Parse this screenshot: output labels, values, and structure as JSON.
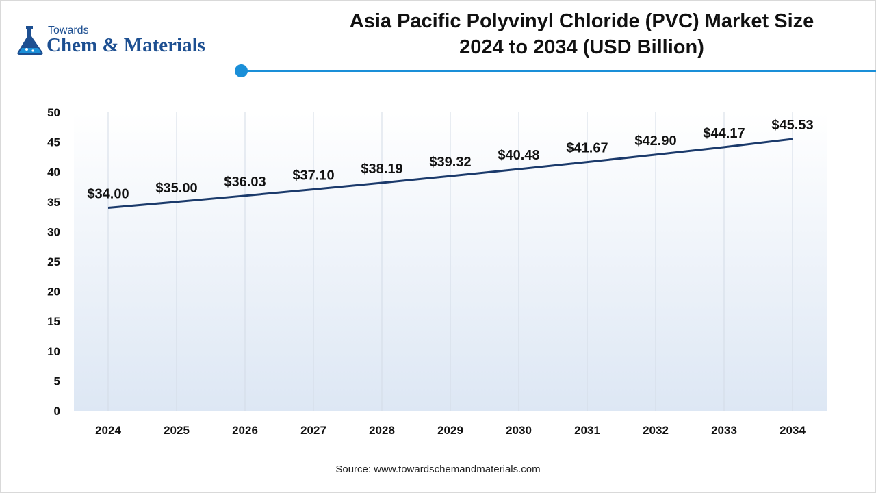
{
  "logo": {
    "small": "Towards",
    "big": "Chem & Materials"
  },
  "chart_data": {
    "type": "line",
    "title": "Asia Pacific Polyvinyl Chloride (PVC) Market Size",
    "subtitle": "2024 to 2034 (USD Billion)",
    "categories": [
      "2024",
      "2025",
      "2026",
      "2027",
      "2028",
      "2029",
      "2030",
      "2031",
      "2032",
      "2033",
      "2034"
    ],
    "values": [
      34.0,
      35.0,
      36.03,
      37.1,
      38.19,
      39.32,
      40.48,
      41.67,
      42.9,
      44.17,
      45.53
    ],
    "data_labels": [
      "$34.00",
      "$35.00",
      "$36.03",
      "$37.10",
      "$38.19",
      "$39.32",
      "$40.48",
      "$41.67",
      "$42.90",
      "$44.17",
      "$45.53"
    ],
    "yticks": [
      0,
      5,
      10,
      15,
      20,
      25,
      30,
      35,
      40,
      45,
      50
    ],
    "ylim": [
      0,
      50
    ],
    "xlabel": "",
    "ylabel": "",
    "grid": "vertical",
    "line_color": "#1b3a6b"
  },
  "source": "Source: www.towardschemandmaterials.com"
}
